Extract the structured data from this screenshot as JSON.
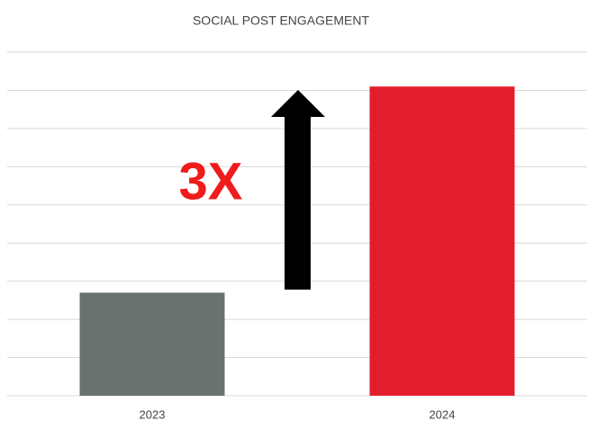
{
  "chart_data": {
    "type": "bar",
    "title": "SOCIAL POST ENGAGEMENT",
    "categories": [
      "2023",
      "2024"
    ],
    "values": [
      2.7,
      8.1
    ],
    "colors": [
      "#6b716e",
      "#e21e2d"
    ],
    "annotation": "3X",
    "annotation_color": "#f01b1b",
    "ylim": [
      0,
      9
    ],
    "yticks": [
      0,
      1,
      2,
      3,
      4,
      5,
      6,
      7,
      8,
      9
    ],
    "grid": true
  }
}
